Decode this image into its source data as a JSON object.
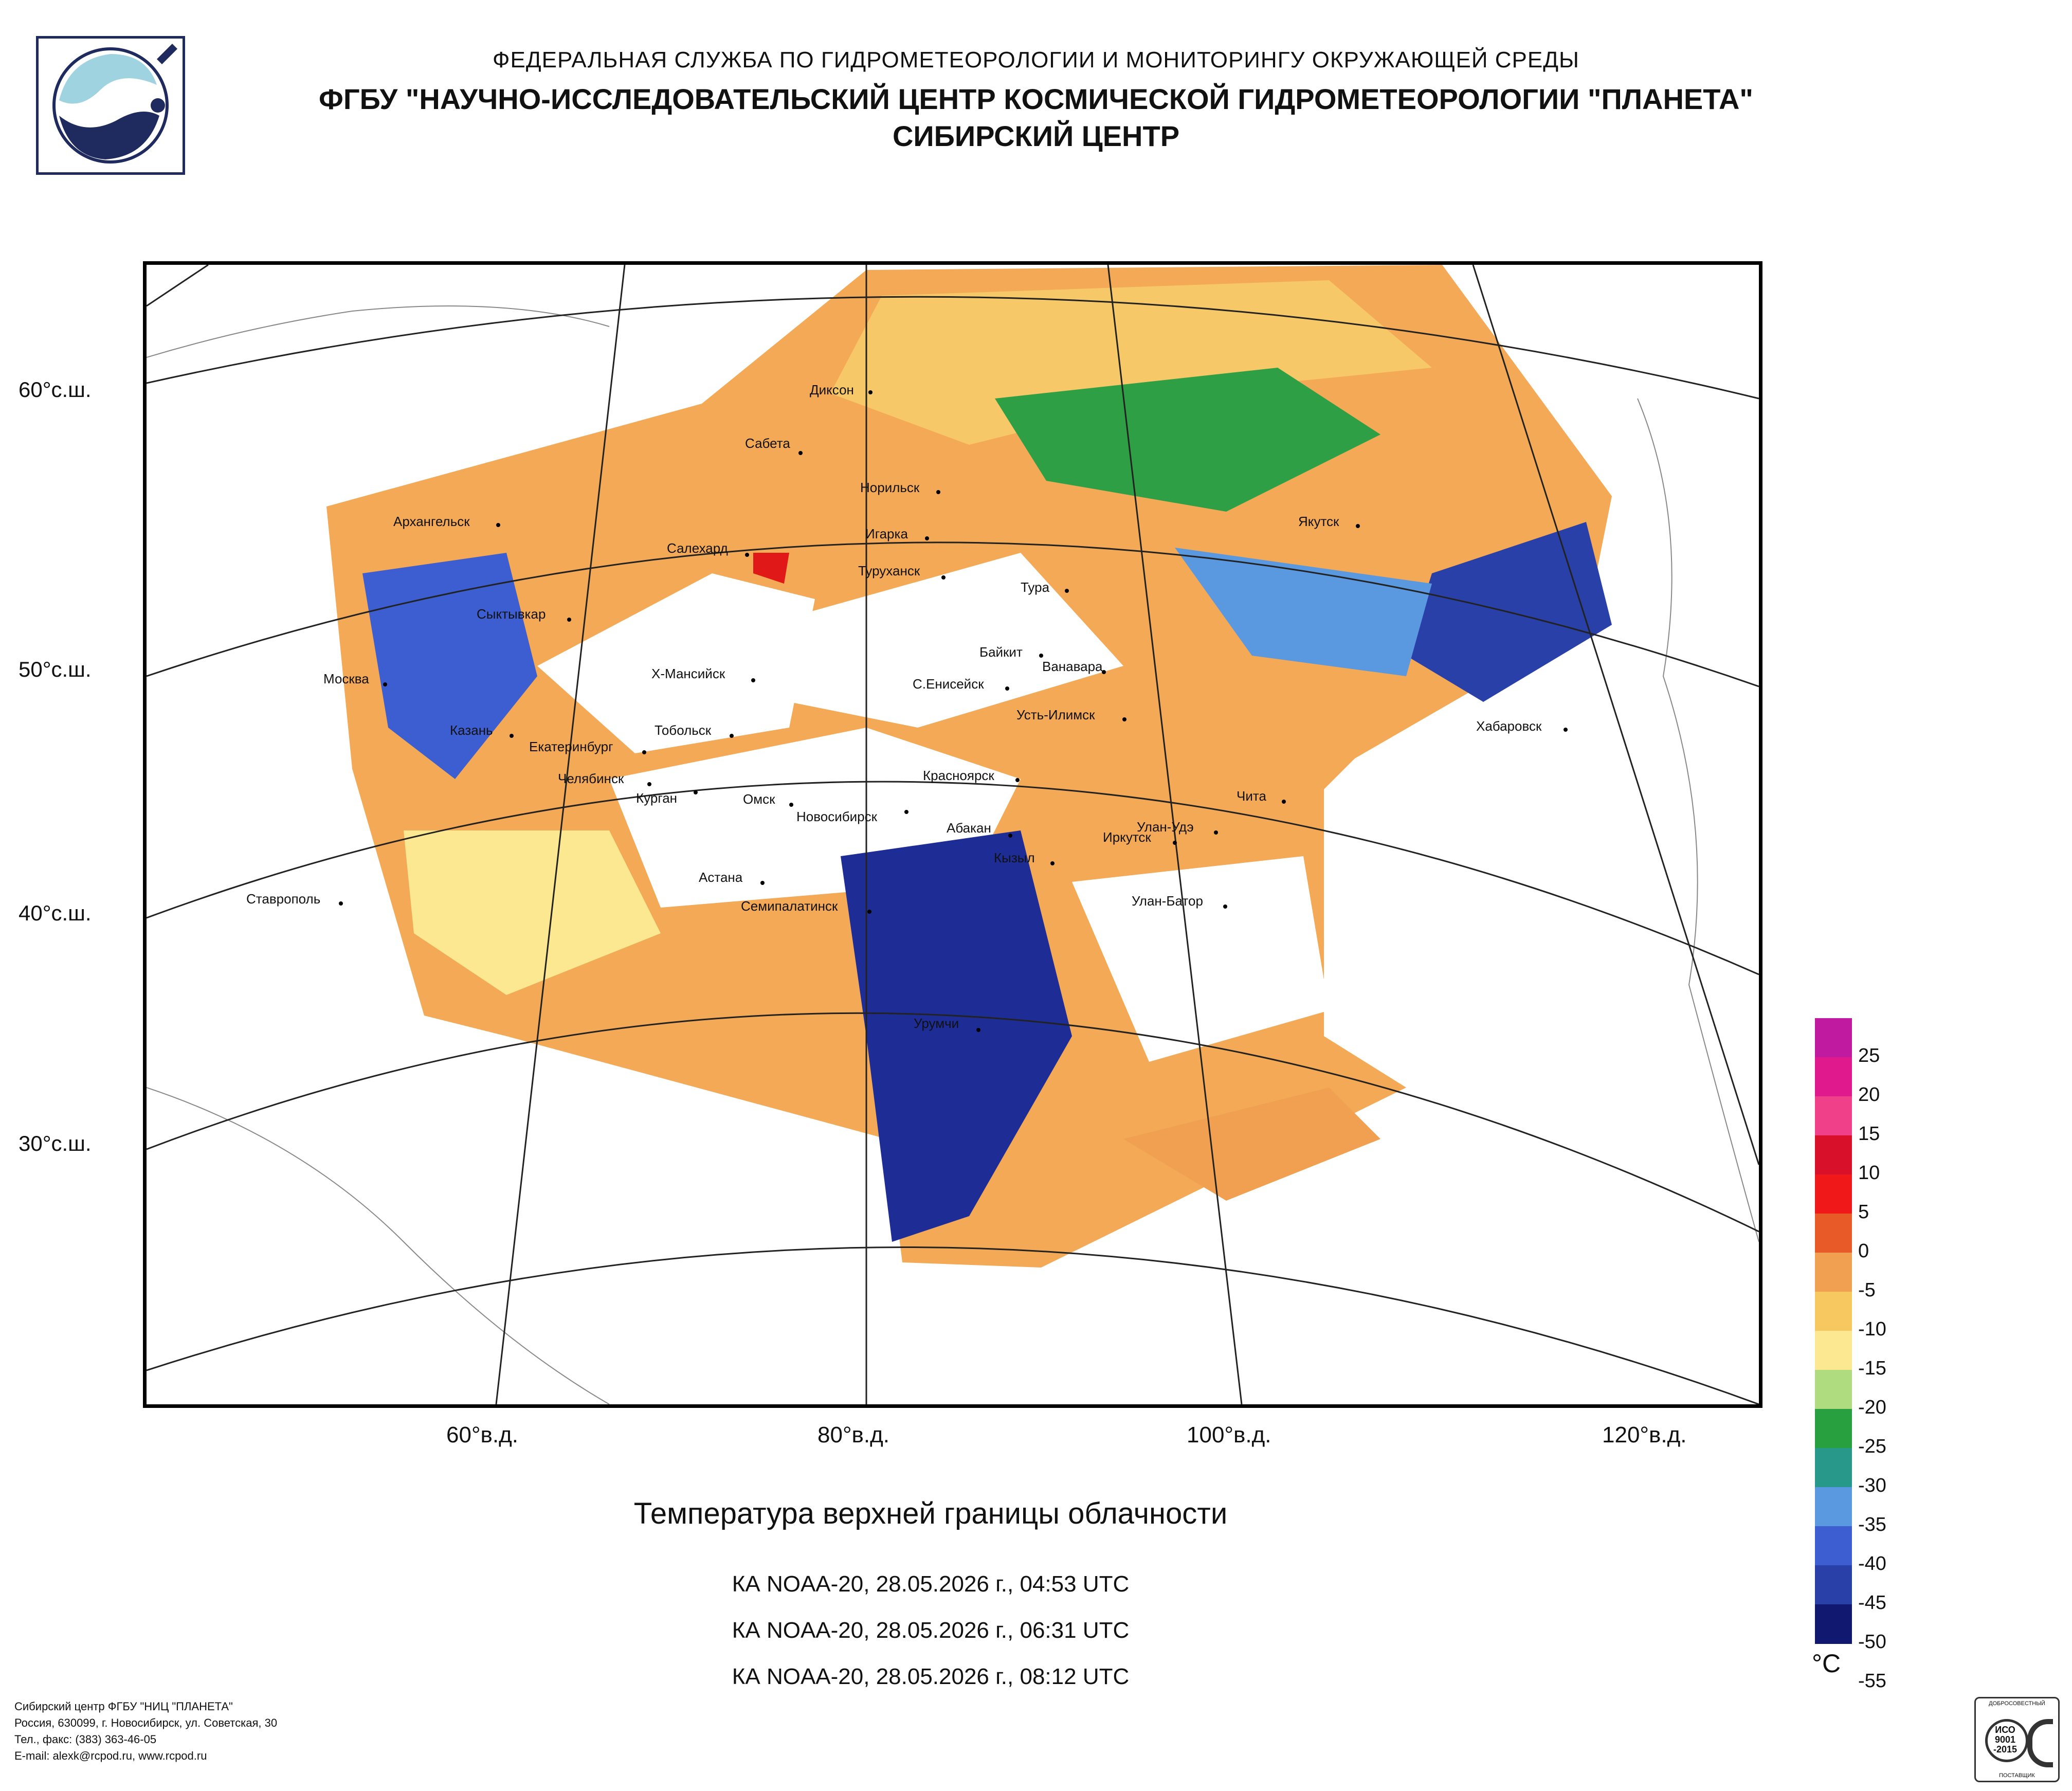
{
  "header": {
    "agency": "ФЕДЕРАЛЬНАЯ СЛУЖБА ПО ГИДРОМЕТЕОРОЛОГИИ И МОНИТОРИНГУ ОКРУЖАЮЩЕЙ СРЕДЫ",
    "institute": "ФГБУ \"НАУЧНО-ИССЛЕДОВАТЕЛЬСКИЙ ЦЕНТР КОСМИЧЕСКОЙ ГИДРОМЕТЕОРОЛОГИИ \"ПЛАНЕТА\"",
    "center": "СИБИРСКИЙ ЦЕНТР"
  },
  "map": {
    "lat_labels": [
      "60°с.ш.",
      "50°с.ш.",
      "40°с.ш.",
      "30°с.ш."
    ],
    "lon_labels": [
      "60°в.д.",
      "80°в.д.",
      "100°в.д.",
      "120°в.д."
    ],
    "cities": [
      "Диксон",
      "Сабета",
      "Норильск",
      "Архангельск",
      "Игарка",
      "Салехард",
      "Туруханск",
      "Тура",
      "Якутск",
      "Сыктывкар",
      "Байкит",
      "Ванавара",
      "Х-Мансийск",
      "С.Енисейск",
      "Москва",
      "Усть-Илимск",
      "Хабаровск",
      "Казань",
      "Тобольск",
      "Екатеринбург",
      "Челябинск",
      "Красноярск",
      "Курган",
      "Омск",
      "Чита",
      "Новосибирск",
      "Абакан",
      "Улан-Удэ",
      "Иркутск",
      "Кызыл",
      "Астана",
      "Ставрополь",
      "Семипалатинск",
      "Улан-Батор",
      "Урумчи"
    ]
  },
  "product_title": "Температура верхней границы облачности",
  "passes": [
    "КА NOAA-20, 28.05.2026 г., 04:53 UTC",
    "КА NOAA-20, 28.05.2026 г., 06:31 UTC",
    "КА NOAA-20, 28.05.2026 г., 08:12 UTC"
  ],
  "legend": {
    "unit": "°C",
    "labels": [
      "25",
      "20",
      "15",
      "10",
      "5",
      "0",
      "-5",
      "-10",
      "-15",
      "-20",
      "-25",
      "-30",
      "-35",
      "-40",
      "-45",
      "-50",
      "-55"
    ],
    "colors": [
      "#c01aa0",
      "#e01a8c",
      "#f0408a",
      "#d8102a",
      "#f01818",
      "#e85a28",
      "#f0a050",
      "#f8c860",
      "#fbe890",
      "#b0dc80",
      "#28a040",
      "#28988a",
      "#5a98e0",
      "#3c5ed0",
      "#2840a8",
      "#101870"
    ]
  },
  "footer": {
    "line1": "Сибирский центр ФГБУ \"НИЦ \"ПЛАНЕТА\"",
    "line2": "Россия, 630099, г. Новосибирск, ул. Советская, 30",
    "line3": "Тел., факс: (383) 363-46-05",
    "line4": "E-mail: alexk@rcpod.ru, www.rcpod.ru"
  },
  "cert": {
    "top": "ДОБРОСОВЕСТНЫЙ",
    "mid1": "ИСО",
    "mid2": "9001",
    "mid3": "-2015",
    "bottom": "ПОСТАВЩИК"
  }
}
